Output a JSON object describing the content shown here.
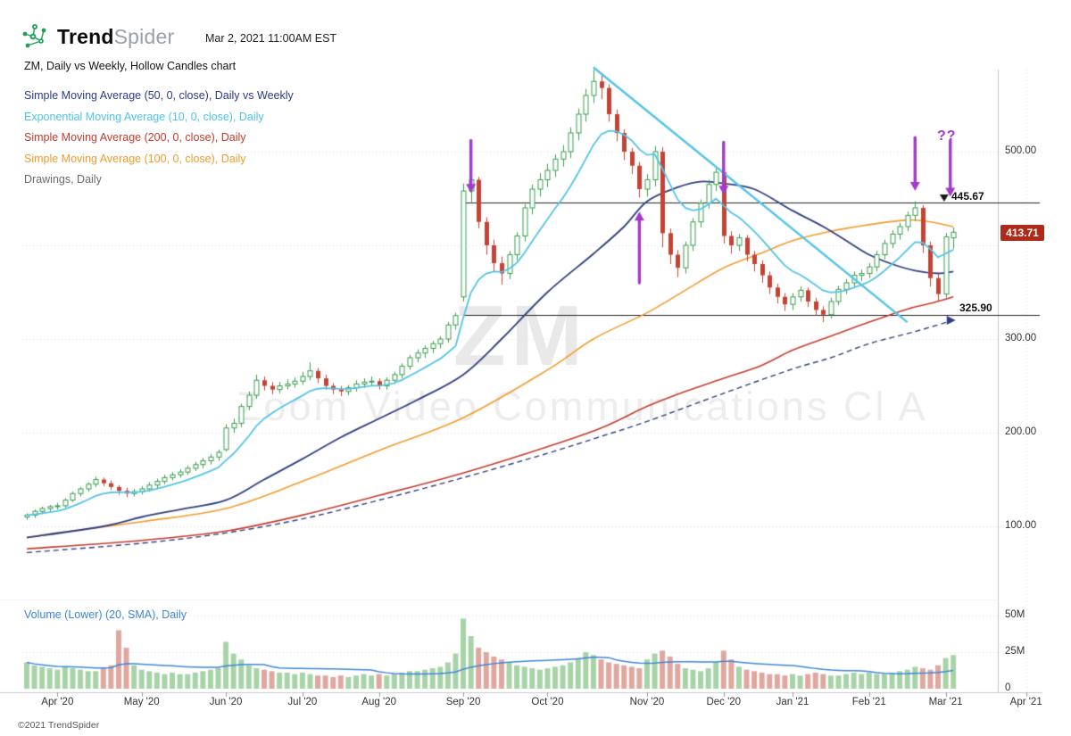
{
  "header": {
    "brand_bold": "Trend",
    "brand_light": "Spider",
    "timestamp": "Mar 2, 2021 11:00AM EST"
  },
  "title": "ZM, Daily vs Weekly, Hollow Candles chart",
  "legend": [
    {
      "label": "Simple Moving Average (50, 0, close), Daily vs Weekly",
      "color": "#2b3a85"
    },
    {
      "label": "Exponential Moving Average (10, 0, close), Daily",
      "color": "#4fc3e8"
    },
    {
      "label": "Simple Moving Average (200, 0, close), Daily",
      "color": "#c43b2e"
    },
    {
      "label": "Simple Moving Average (100, 0, close), Daily",
      "color": "#f39b2d"
    },
    {
      "label": "Drawings, Daily",
      "color": "#6b6b6b"
    }
  ],
  "watermark": {
    "symbol": "ZM",
    "name": "Zoom Video Communications Cl A"
  },
  "annotations": {
    "question_marks": "??"
  },
  "price_labels": {
    "resistance": "445.67",
    "support": "325.90",
    "current": "413.71"
  },
  "y_axis": [
    {
      "label": "500.00",
      "price": 500
    },
    {
      "label": "300.00",
      "price": 300
    },
    {
      "label": "200.00",
      "price": 200
    },
    {
      "label": "100.00",
      "price": 100
    }
  ],
  "volume_axis": [
    {
      "label": "50M",
      "v": 50
    },
    {
      "label": "25M",
      "v": 25
    },
    {
      "label": "0",
      "v": 0
    }
  ],
  "volume_legend": "Volume (Lower) (20, SMA), Daily",
  "footer": "©2021 TrendSpider",
  "chart_data": {
    "type": "candlestick",
    "style": "hollow_candles",
    "symbol": "ZM",
    "timeframe": "Daily vs Weekly",
    "ylim": [
      33,
      587
    ],
    "volume_ylim_millions": [
      0,
      57
    ],
    "month_ticks": [
      {
        "label": "Apr '20",
        "i": 4
      },
      {
        "label": "May '20",
        "i": 15
      },
      {
        "label": "Jun '20",
        "i": 26
      },
      {
        "label": "Jul '20",
        "i": 36
      },
      {
        "label": "Aug '20",
        "i": 46
      },
      {
        "label": "Sep '20",
        "i": 57
      },
      {
        "label": "Oct '20",
        "i": 68
      },
      {
        "label": "Nov '20",
        "i": 81
      },
      {
        "label": "Dec '20",
        "i": 91
      },
      {
        "label": "Jan '21",
        "i": 100
      },
      {
        "label": "Feb '21",
        "i": 110
      },
      {
        "label": "Mar '21",
        "i": 120
      },
      {
        "label": "Apr '21",
        "i": 130.5
      }
    ],
    "candles": [
      [
        110,
        114,
        107,
        112
      ],
      [
        112,
        118,
        109,
        116
      ],
      [
        116,
        121,
        113,
        119
      ],
      [
        119,
        123,
        116,
        121
      ],
      [
        121,
        125,
        118,
        122
      ],
      [
        122,
        130,
        120,
        128
      ],
      [
        128,
        137,
        126,
        135
      ],
      [
        135,
        142,
        132,
        140
      ],
      [
        140,
        147,
        137,
        145
      ],
      [
        145,
        153,
        142,
        150
      ],
      [
        150,
        152,
        143,
        146
      ],
      [
        146,
        149,
        139,
        142
      ],
      [
        142,
        144,
        134,
        138
      ],
      [
        138,
        141,
        131,
        135
      ],
      [
        135,
        140,
        132,
        137
      ],
      [
        137,
        143,
        134,
        140
      ],
      [
        140,
        147,
        137,
        144
      ],
      [
        144,
        151,
        141,
        148
      ],
      [
        148,
        155,
        145,
        152
      ],
      [
        152,
        158,
        149,
        155
      ],
      [
        155,
        161,
        152,
        158
      ],
      [
        158,
        165,
        155,
        162
      ],
      [
        162,
        169,
        159,
        166
      ],
      [
        166,
        173,
        162,
        170
      ],
      [
        170,
        177,
        166,
        174
      ],
      [
        174,
        182,
        170,
        179
      ],
      [
        182,
        209,
        180,
        205
      ],
      [
        205,
        215,
        200,
        210
      ],
      [
        210,
        231,
        206,
        228
      ],
      [
        228,
        244,
        224,
        240
      ],
      [
        240,
        262,
        236,
        256
      ],
      [
        256,
        260,
        245,
        250
      ],
      [
        250,
        254,
        241,
        246
      ],
      [
        246,
        254,
        242,
        250
      ],
      [
        250,
        257,
        246,
        252
      ],
      [
        252,
        259,
        248,
        255
      ],
      [
        255,
        265,
        251,
        260
      ],
      [
        260,
        275,
        256,
        266
      ],
      [
        266,
        269,
        253,
        258
      ],
      [
        258,
        262,
        246,
        250
      ],
      [
        250,
        253,
        241,
        246
      ],
      [
        246,
        250,
        239,
        244
      ],
      [
        244,
        251,
        240,
        248
      ],
      [
        248,
        256,
        244,
        252
      ],
      [
        252,
        258,
        248,
        254
      ],
      [
        254,
        260,
        250,
        255
      ],
      [
        255,
        258,
        246,
        250
      ],
      [
        250,
        259,
        246,
        256
      ],
      [
        256,
        265,
        252,
        262
      ],
      [
        262,
        274,
        258,
        271
      ],
      [
        271,
        283,
        267,
        280
      ],
      [
        280,
        289,
        275,
        285
      ],
      [
        285,
        293,
        280,
        290
      ],
      [
        290,
        298,
        285,
        295
      ],
      [
        295,
        303,
        290,
        300
      ],
      [
        300,
        318,
        296,
        315
      ],
      [
        315,
        328,
        310,
        325
      ],
      [
        345,
        466,
        340,
        458
      ],
      [
        458,
        478,
        446,
        470
      ],
      [
        470,
        473,
        418,
        425
      ],
      [
        425,
        430,
        390,
        400
      ],
      [
        400,
        406,
        372,
        381
      ],
      [
        381,
        388,
        358,
        370
      ],
      [
        370,
        394,
        364,
        390
      ],
      [
        390,
        414,
        384,
        410
      ],
      [
        410,
        444,
        404,
        440
      ],
      [
        440,
        465,
        433,
        460
      ],
      [
        460,
        477,
        452,
        470
      ],
      [
        470,
        487,
        462,
        480
      ],
      [
        480,
        497,
        473,
        492
      ],
      [
        492,
        507,
        484,
        500
      ],
      [
        500,
        526,
        493,
        520
      ],
      [
        520,
        546,
        512,
        540
      ],
      [
        540,
        567,
        532,
        560
      ],
      [
        560,
        588,
        552,
        575
      ],
      [
        575,
        581,
        556,
        568
      ],
      [
        568,
        572,
        532,
        540
      ],
      [
        540,
        545,
        511,
        520
      ],
      [
        520,
        524,
        491,
        500
      ],
      [
        500,
        504,
        476,
        485
      ],
      [
        485,
        489,
        451,
        460
      ],
      [
        460,
        476,
        452,
        470
      ],
      [
        470,
        506,
        463,
        500
      ],
      [
        500,
        505,
        398,
        413
      ],
      [
        413,
        418,
        380,
        390
      ],
      [
        390,
        395,
        366,
        376
      ],
      [
        376,
        404,
        370,
        400
      ],
      [
        400,
        429,
        394,
        425
      ],
      [
        425,
        449,
        419,
        445
      ],
      [
        445,
        470,
        439,
        465
      ],
      [
        465,
        482,
        458,
        478
      ],
      [
        478,
        481,
        402,
        410
      ],
      [
        410,
        415,
        391,
        400
      ],
      [
        400,
        412,
        394,
        408
      ],
      [
        408,
        411,
        383,
        390
      ],
      [
        390,
        394,
        372,
        380
      ],
      [
        380,
        384,
        360,
        368
      ],
      [
        368,
        372,
        348,
        355
      ],
      [
        355,
        359,
        338,
        345
      ],
      [
        345,
        349,
        330,
        337
      ],
      [
        337,
        349,
        331,
        345
      ],
      [
        345,
        356,
        340,
        352
      ],
      [
        352,
        355,
        334,
        340
      ],
      [
        340,
        344,
        325,
        331
      ],
      [
        331,
        335,
        318,
        326
      ],
      [
        326,
        344,
        322,
        340
      ],
      [
        340,
        357,
        336,
        353
      ],
      [
        353,
        364,
        348,
        360
      ],
      [
        360,
        372,
        355,
        368
      ],
      [
        368,
        374,
        362,
        370
      ],
      [
        370,
        381,
        365,
        377
      ],
      [
        377,
        394,
        372,
        390
      ],
      [
        390,
        406,
        385,
        402
      ],
      [
        402,
        416,
        397,
        412
      ],
      [
        412,
        424,
        406,
        420
      ],
      [
        420,
        436,
        415,
        432
      ],
      [
        432,
        447,
        426,
        440
      ],
      [
        440,
        443,
        392,
        400
      ],
      [
        400,
        404,
        356,
        365
      ],
      [
        365,
        369,
        340,
        348
      ],
      [
        348,
        413,
        344,
        409
      ],
      [
        408,
        419,
        396,
        414
      ]
    ],
    "volumes_millions": [
      18,
      16,
      15,
      14,
      13,
      15,
      14,
      13,
      12,
      12,
      14,
      16,
      40,
      28,
      16,
      13,
      12,
      11,
      10,
      11,
      10,
      10,
      11,
      12,
      13,
      14,
      32,
      24,
      20,
      16,
      14,
      13,
      12,
      11,
      11,
      10,
      11,
      10,
      9,
      9,
      8,
      9,
      8,
      9,
      10,
      9,
      10,
      9,
      10,
      11,
      12,
      12,
      13,
      14,
      15,
      18,
      24,
      48,
      36,
      28,
      25,
      22,
      20,
      18,
      16,
      15,
      14,
      13,
      14,
      15,
      16,
      18,
      21,
      25,
      23,
      20,
      18,
      17,
      16,
      15,
      14,
      20,
      24,
      26,
      22,
      17,
      14,
      13,
      12,
      14,
      18,
      26,
      20,
      15,
      13,
      12,
      11,
      10,
      10,
      9,
      10,
      9,
      10,
      11,
      10,
      9,
      9,
      10,
      11,
      10,
      11,
      10,
      10,
      11,
      12,
      13,
      15,
      14,
      13,
      16,
      21,
      23
    ],
    "lines": {
      "sma50_daily": {
        "color": "#2e3f7f",
        "width": 1.8,
        "points": [
          [
            0,
            88
          ],
          [
            10,
            100
          ],
          [
            15,
            110
          ],
          [
            20,
            118
          ],
          [
            26,
            128
          ],
          [
            31,
            150
          ],
          [
            36,
            172
          ],
          [
            41,
            195
          ],
          [
            46,
            215
          ],
          [
            51,
            235
          ],
          [
            57,
            262
          ],
          [
            62,
            300
          ],
          [
            68,
            350
          ],
          [
            74,
            391
          ],
          [
            78,
            420
          ],
          [
            81,
            447
          ],
          [
            85,
            462
          ],
          [
            88,
            468
          ],
          [
            91,
            466
          ],
          [
            95,
            460
          ],
          [
            100,
            437
          ],
          [
            104,
            420
          ],
          [
            107,
            405
          ],
          [
            110,
            390
          ],
          [
            113,
            380
          ],
          [
            116,
            373
          ],
          [
            119,
            370
          ],
          [
            121,
            372
          ]
        ]
      },
      "sma50_weekly_dashed": {
        "color": "#2e3f7f",
        "width": 1.4,
        "dash": [
          6,
          4
        ],
        "points": [
          [
            0,
            72
          ],
          [
            15,
            82
          ],
          [
            26,
            93
          ],
          [
            36,
            108
          ],
          [
            46,
            128
          ],
          [
            57,
            152
          ],
          [
            68,
            178
          ],
          [
            75,
            196
          ],
          [
            81,
            212
          ],
          [
            91,
            242
          ],
          [
            100,
            268
          ],
          [
            105,
            280
          ],
          [
            110,
            295
          ],
          [
            116,
            308
          ],
          [
            121,
            320
          ]
        ]
      },
      "sma200_daily": {
        "color": "#c43b2e",
        "width": 1.6,
        "points": [
          [
            0,
            76
          ],
          [
            15,
            85
          ],
          [
            26,
            95
          ],
          [
            36,
            112
          ],
          [
            46,
            133
          ],
          [
            57,
            157
          ],
          [
            68,
            185
          ],
          [
            75,
            205
          ],
          [
            81,
            228
          ],
          [
            86,
            244
          ],
          [
            91,
            258
          ],
          [
            96,
            272
          ],
          [
            100,
            288
          ],
          [
            105,
            303
          ],
          [
            110,
            318
          ],
          [
            115,
            332
          ],
          [
            118,
            338
          ],
          [
            121,
            345
          ]
        ]
      },
      "sma100_daily": {
        "color": "#f39b2d",
        "width": 1.6,
        "points": [
          [
            0,
            88
          ],
          [
            4,
            93
          ],
          [
            15,
            105
          ],
          [
            26,
            119
          ],
          [
            36,
            148
          ],
          [
            46,
            181
          ],
          [
            57,
            216
          ],
          [
            68,
            267
          ],
          [
            74,
            300
          ],
          [
            81,
            328
          ],
          [
            86,
            352
          ],
          [
            91,
            376
          ],
          [
            96,
            392
          ],
          [
            100,
            405
          ],
          [
            105,
            415
          ],
          [
            110,
            422
          ],
          [
            115,
            427
          ],
          [
            118,
            425
          ],
          [
            121,
            420
          ]
        ]
      },
      "ema10_daily": {
        "color": "#54c3e6",
        "width": 1.8,
        "source": "computed_from_closes",
        "period": 10
      }
    },
    "trendline": {
      "color": "#54c3e6",
      "width": 2.5,
      "from": [
        74,
        590
      ],
      "to": [
        115,
        318
      ]
    },
    "hlines": [
      {
        "price": 445.67,
        "from_i": 57,
        "color": "#222"
      },
      {
        "price": 325.9,
        "from_i": 57,
        "color": "#222"
      }
    ],
    "arrows": [
      {
        "i": 58,
        "from": 512,
        "to": 456,
        "dir": "down"
      },
      {
        "i": 80,
        "from": 360,
        "to": 436,
        "dir": "up"
      },
      {
        "i": 91,
        "from": 510,
        "to": 454,
        "dir": "down"
      },
      {
        "i": 116,
        "from": 515,
        "to": 458,
        "dir": "down"
      },
      {
        "i": 120.6,
        "from": 512,
        "to": 452,
        "dir": "down"
      }
    ],
    "arrow_color": "#a13bcb",
    "markers": [
      {
        "type": "tri-down",
        "i": 119.8,
        "price": 445.67,
        "color": "#1a1a1a"
      },
      {
        "type": "tri-right",
        "i": 121.3,
        "price": 320,
        "color": "#2e3f7f"
      }
    ],
    "colors": {
      "up": "#3b9c4e",
      "down": "#c54334",
      "vol_up": "#a8d3a8",
      "vol_down": "#e0a79f",
      "vol_sma": "#3d87d8",
      "grid": "#dedede",
      "axis": "#c9c9c9",
      "tick": "#999999"
    },
    "grid_prices": [
      100,
      200,
      300,
      400,
      500
    ],
    "grid_volumes": [
      25,
      50
    ]
  }
}
